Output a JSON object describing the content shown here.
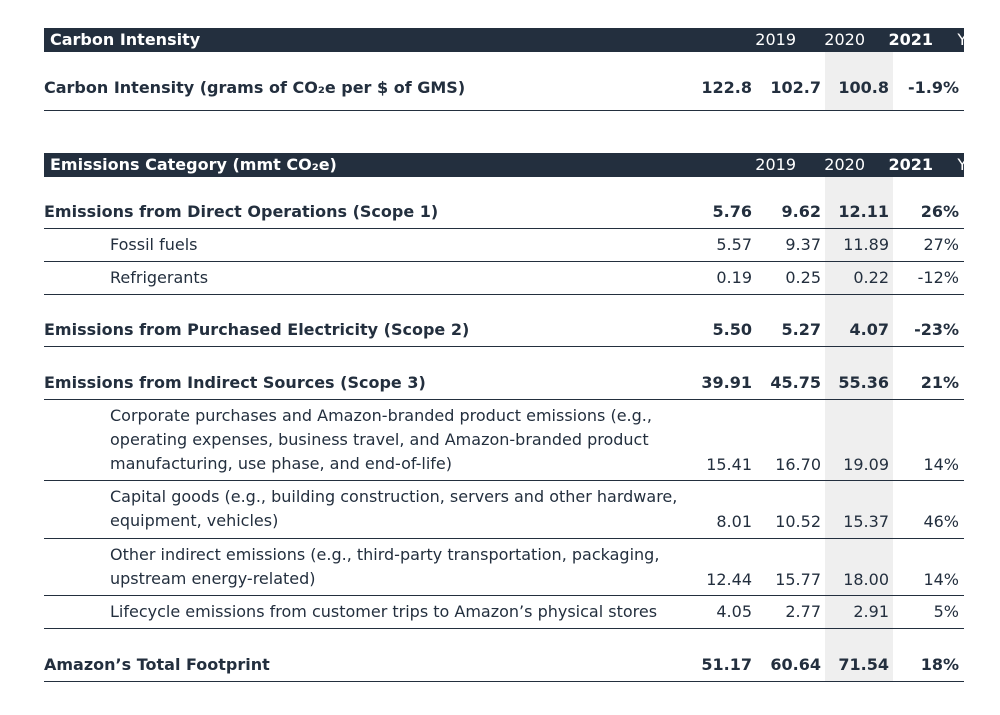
{
  "carbon_intensity": {
    "header": {
      "title": "Carbon Intensity",
      "y2019": "2019",
      "y2020": "2020",
      "y2021": "2021",
      "yoy": "YOY%"
    },
    "row": {
      "label": "Carbon Intensity (grams of CO₂e per $ of GMS)",
      "v2019": "122.8",
      "v2020": "102.7",
      "v2021": "100.8",
      "yoy": "-1.9%"
    }
  },
  "emissions": {
    "header": {
      "title": "Emissions Category (mmt CO₂e)",
      "y2019": "2019",
      "y2020": "2020",
      "y2021": "2021",
      "yoy": "YOY%"
    },
    "rows": [
      {
        "label": "Emissions from Direct Operations (Scope 1)",
        "v2019": "5.76",
        "v2020": "9.62",
        "v2021": "12.11",
        "yoy": "26%"
      },
      {
        "label": "Fossil fuels",
        "v2019": "5.57",
        "v2020": "9.37",
        "v2021": "11.89",
        "yoy": "27%"
      },
      {
        "label": "Refrigerants",
        "v2019": "0.19",
        "v2020": "0.25",
        "v2021": "0.22",
        "yoy": "-12%"
      },
      {
        "label": "Emissions from Purchased Electricity (Scope 2)",
        "v2019": "5.50",
        "v2020": "5.27",
        "v2021": "4.07",
        "yoy": "-23%"
      },
      {
        "label": "Emissions from Indirect Sources (Scope 3)",
        "v2019": "39.91",
        "v2020": "45.75",
        "v2021": "55.36",
        "yoy": "21%"
      },
      {
        "label": "Corporate purchases and Amazon-branded product emissions (e.g., operating expenses, business travel, and Amazon-branded product manufacturing, use phase, and end-of-life)",
        "v2019": "15.41",
        "v2020": "16.70",
        "v2021": "19.09",
        "yoy": "14%"
      },
      {
        "label": "Capital goods (e.g., building construction, servers and other hardware, equipment, vehicles)",
        "v2019": "8.01",
        "v2020": "10.52",
        "v2021": "15.37",
        "yoy": "46%"
      },
      {
        "label": "Other indirect emissions (e.g., third-party transportation, packaging, upstream energy-related)",
        "v2019": "12.44",
        "v2020": "15.77",
        "v2021": "18.00",
        "yoy": "14%"
      },
      {
        "label": "Lifecycle emissions from customer trips to Amazon’s physical stores",
        "v2019": "4.05",
        "v2020": "2.77",
        "v2021": "2.91",
        "yoy": "5%"
      },
      {
        "label": "Amazon’s Total Footprint",
        "v2019": "51.17",
        "v2020": "60.64",
        "v2021": "71.54",
        "yoy": "18%"
      }
    ]
  }
}
